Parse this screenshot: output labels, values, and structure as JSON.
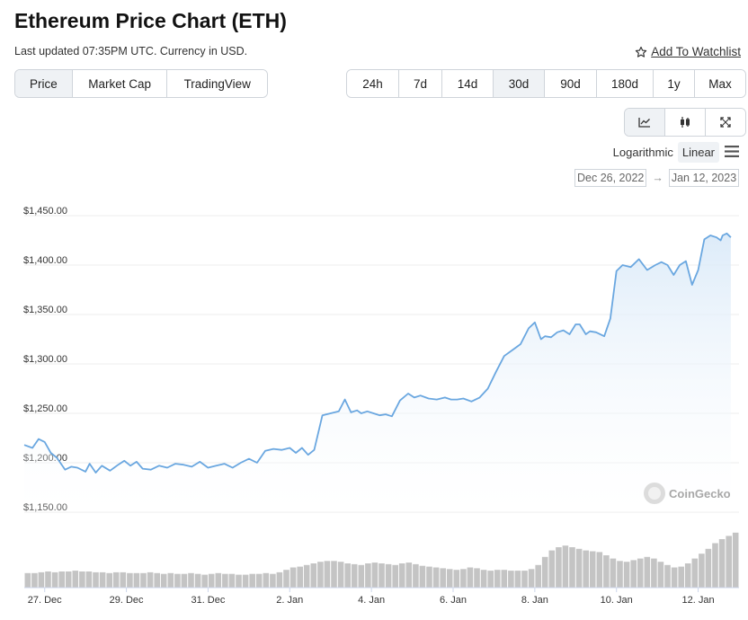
{
  "header": {
    "title": "Ethereum Price Chart (ETH)",
    "updated": "Last updated 07:35PM UTC. Currency in USD.",
    "watchlist": "Add To Watchlist"
  },
  "view_tabs": [
    {
      "label": "Price",
      "active": true
    },
    {
      "label": "Market Cap",
      "active": false
    },
    {
      "label": "TradingView",
      "active": false
    }
  ],
  "range_tabs": [
    {
      "label": "24h",
      "active": false
    },
    {
      "label": "7d",
      "active": false
    },
    {
      "label": "14d",
      "active": false
    },
    {
      "label": "30d",
      "active": true
    },
    {
      "label": "90d",
      "active": false
    },
    {
      "label": "180d",
      "active": false
    },
    {
      "label": "1y",
      "active": false
    },
    {
      "label": "Max",
      "active": false
    }
  ],
  "chart_type_toggle": [
    {
      "icon": "line-chart-icon",
      "active": true
    },
    {
      "icon": "candlestick-icon",
      "active": false
    },
    {
      "icon": "fullscreen-icon",
      "active": false
    }
  ],
  "scale": {
    "log_label": "Logarithmic",
    "linear_label": "Linear",
    "active": "Linear"
  },
  "date_range": {
    "from": "Dec 26, 2022",
    "to": "Jan 12, 2023",
    "arrow": "→"
  },
  "watermark": "CoinGecko",
  "colors": {
    "line": "#6aa7e0",
    "area": "#e8f1fb",
    "volume": "#c4c4c4",
    "grid": "#eeeeee",
    "active_bg": "#eff2f5"
  },
  "chart_data": {
    "type": "area",
    "title": "",
    "xlabel": "",
    "ylabel": "",
    "ylim": [
      1150,
      1450
    ],
    "yticks": [
      1150,
      1200,
      1250,
      1300,
      1350,
      1400,
      1450
    ],
    "ytick_labels": [
      "$1,150.00",
      "$1,200.00",
      "$1,250.00",
      "$1,300.00",
      "$1,350.00",
      "$1,400.00",
      "$1,450.00"
    ],
    "xlim_days": [
      0,
      17.5
    ],
    "xtick_labels": [
      "27. Dec",
      "29. Dec",
      "31. Dec",
      "2. Jan",
      "4. Jan",
      "6. Jan",
      "8. Jan",
      "10. Jan",
      "12. Jan"
    ],
    "xtick_days": [
      0.5,
      2.5,
      4.5,
      6.5,
      8.5,
      10.5,
      12.5,
      14.5,
      16.5
    ],
    "grid": true,
    "series": [
      {
        "values_comment_free": true,
        "x_days": [
          0.0,
          0.2,
          0.35,
          0.5,
          0.65,
          0.8,
          1.0,
          1.15,
          1.3,
          1.5,
          1.6,
          1.75,
          1.9,
          2.1,
          2.3,
          2.45,
          2.6,
          2.75,
          2.9,
          3.1,
          3.3,
          3.5,
          3.7,
          3.9,
          4.1,
          4.3,
          4.5,
          4.7,
          4.9,
          5.1,
          5.3,
          5.5,
          5.7,
          5.9,
          6.1,
          6.3,
          6.5,
          6.65,
          6.8,
          6.95,
          7.1,
          7.3,
          7.5,
          7.7,
          7.85,
          8.0,
          8.15,
          8.25,
          8.4,
          8.55,
          8.7,
          8.85,
          9.0,
          9.2,
          9.4,
          9.55,
          9.7,
          9.9,
          10.1,
          10.3,
          10.45,
          10.6,
          10.75,
          10.95,
          11.15,
          11.35,
          11.55,
          11.75,
          11.95,
          12.15,
          12.35,
          12.5,
          12.65,
          12.75,
          12.9,
          13.05,
          13.2,
          13.35,
          13.5,
          13.6,
          13.75,
          13.85,
          14.0,
          14.2,
          14.35,
          14.5,
          14.65,
          14.85,
          15.05,
          15.25,
          15.45,
          15.6,
          15.75,
          15.9,
          16.05,
          16.2,
          16.35,
          16.5,
          16.65,
          16.8,
          16.95,
          17.05,
          17.1,
          17.2,
          17.3
        ],
        "y": [
          1218,
          1215,
          1224,
          1221,
          1210,
          1205,
          1193,
          1196,
          1195,
          1191,
          1199,
          1190,
          1197,
          1192,
          1198,
          1202,
          1197,
          1201,
          1194,
          1193,
          1197,
          1195,
          1199,
          1198,
          1196,
          1201,
          1195,
          1197,
          1199,
          1195,
          1200,
          1204,
          1200,
          1212,
          1214,
          1213,
          1215,
          1210,
          1215,
          1208,
          1213,
          1248,
          1250,
          1252,
          1264,
          1251,
          1253,
          1250,
          1252,
          1250,
          1248,
          1249,
          1247,
          1263,
          1270,
          1266,
          1268,
          1265,
          1264,
          1266,
          1264,
          1264,
          1265,
          1262,
          1266,
          1275,
          1292,
          1308,
          1314,
          1320,
          1336,
          1342,
          1325,
          1328,
          1327,
          1332,
          1334,
          1330,
          1340,
          1340,
          1330,
          1333,
          1332,
          1328,
          1346,
          1394,
          1400,
          1398,
          1406,
          1395,
          1400,
          1403,
          1400,
          1390,
          1400,
          1404,
          1380,
          1395,
          1426,
          1430,
          1428,
          1425,
          1430,
          1432,
          1428
        ]
      }
    ],
    "volume": {
      "relative_values": [
        0.18,
        0.18,
        0.19,
        0.2,
        0.19,
        0.2,
        0.2,
        0.21,
        0.2,
        0.2,
        0.19,
        0.19,
        0.18,
        0.19,
        0.19,
        0.18,
        0.18,
        0.18,
        0.19,
        0.18,
        0.17,
        0.18,
        0.17,
        0.17,
        0.18,
        0.17,
        0.16,
        0.17,
        0.18,
        0.17,
        0.17,
        0.16,
        0.16,
        0.17,
        0.17,
        0.18,
        0.17,
        0.19,
        0.22,
        0.25,
        0.26,
        0.28,
        0.3,
        0.32,
        0.33,
        0.33,
        0.32,
        0.3,
        0.29,
        0.28,
        0.3,
        0.31,
        0.3,
        0.29,
        0.28,
        0.3,
        0.31,
        0.29,
        0.27,
        0.26,
        0.25,
        0.24,
        0.23,
        0.22,
        0.23,
        0.25,
        0.24,
        0.22,
        0.21,
        0.22,
        0.22,
        0.21,
        0.21,
        0.21,
        0.23,
        0.28,
        0.38,
        0.46,
        0.5,
        0.52,
        0.5,
        0.48,
        0.46,
        0.45,
        0.44,
        0.4,
        0.36,
        0.33,
        0.32,
        0.34,
        0.36,
        0.38,
        0.36,
        0.32,
        0.28,
        0.25,
        0.26,
        0.3,
        0.36,
        0.42,
        0.48,
        0.55,
        0.6,
        0.64,
        0.68
      ]
    }
  }
}
